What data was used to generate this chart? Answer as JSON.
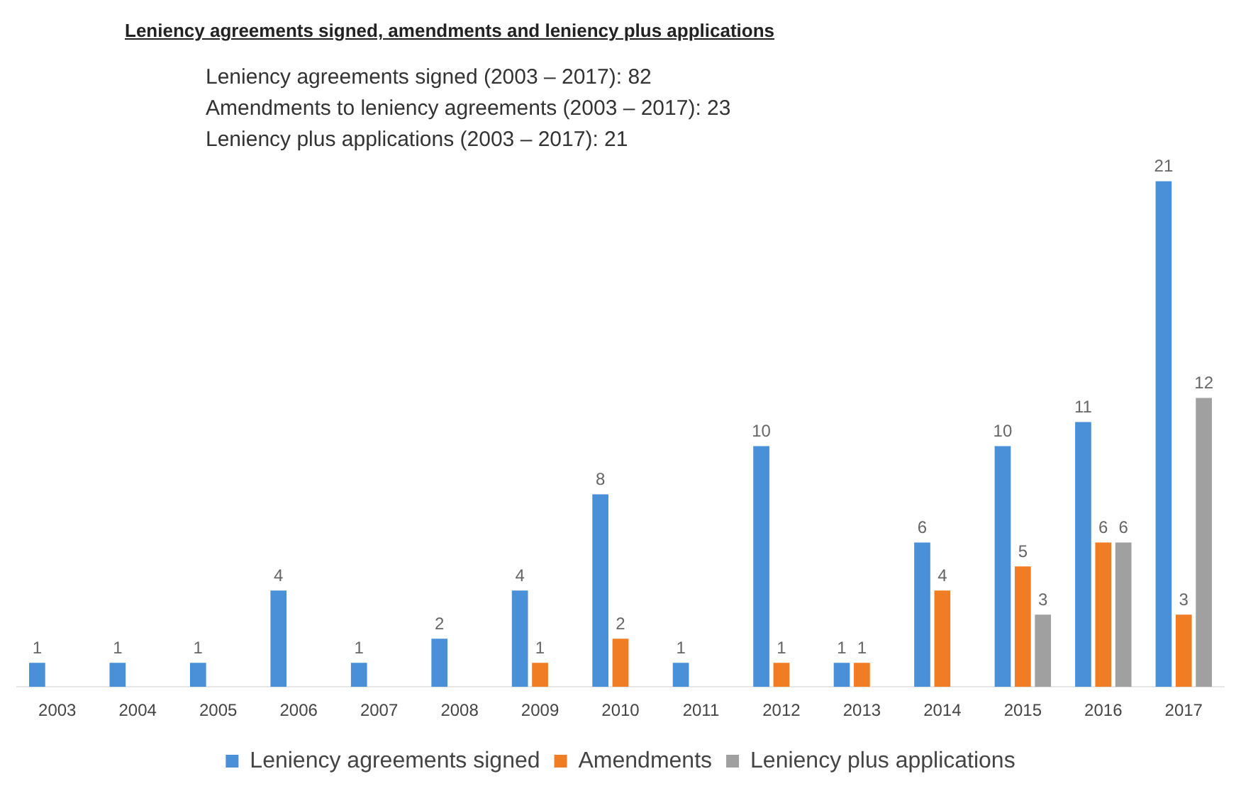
{
  "chart_data": {
    "type": "bar",
    "title": "Leniency agreements signed, amendments and leniency plus applications",
    "annotations": [
      "Leniency agreements signed (2003 – 2017): 82",
      "Amendments to leniency agreements (2003 – 2017): 23",
      "Leniency plus applications (2003 – 2017): 21"
    ],
    "categories": [
      "2003",
      "2004",
      "2005",
      "2006",
      "2007",
      "2008",
      "2009",
      "2010",
      "2011",
      "2012",
      "2013",
      "2014",
      "2015",
      "2016",
      "2017"
    ],
    "series": [
      {
        "name": "Leniency agreements signed",
        "color": "#4a90d9",
        "values": [
          1,
          1,
          1,
          4,
          1,
          2,
          4,
          8,
          1,
          10,
          1,
          6,
          10,
          11,
          21
        ]
      },
      {
        "name": "Amendments",
        "color": "#f07d24",
        "values": [
          null,
          null,
          null,
          null,
          null,
          null,
          1,
          2,
          null,
          1,
          1,
          4,
          5,
          6,
          3
        ]
      },
      {
        "name": "Leniency plus applications",
        "color": "#a0a0a0",
        "values": [
          null,
          null,
          null,
          null,
          null,
          null,
          null,
          null,
          null,
          null,
          null,
          null,
          3,
          6,
          12
        ]
      }
    ],
    "data_labels": true,
    "grid": false,
    "legend": "bottom"
  }
}
